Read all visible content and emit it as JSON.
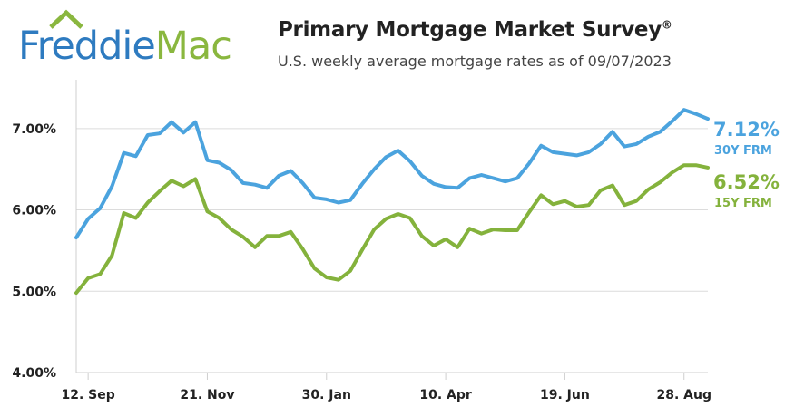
{
  "logo": {
    "part1": "Freddie",
    "part2": "Mac"
  },
  "header": {
    "title": "Primary Mortgage Market Survey",
    "title_mark": "®",
    "subtitle": "U.S. weekly average mortgage rates as of 09/07/2023"
  },
  "colors": {
    "series_30y": "#4ba3de",
    "series_15y": "#84b23c",
    "logo_blue": "#2e7bc0",
    "logo_green": "#8ab73f"
  },
  "chart_data": {
    "type": "line",
    "ylim": [
      4.0,
      7.6
    ],
    "yticks": [
      4.0,
      5.0,
      6.0,
      7.0
    ],
    "ytick_labels": [
      "4.00%",
      "5.00%",
      "6.00%",
      "7.00%"
    ],
    "xtick_labels": [
      "12. Sep",
      "21. Nov",
      "30. Jan",
      "10. Apr",
      "19. Jun",
      "28. Aug"
    ],
    "xtick_index": [
      1,
      11,
      21,
      31,
      41,
      51
    ],
    "grid": "horizontal",
    "series": [
      {
        "name": "30Y FRM",
        "end_value_label": "7.12%",
        "values": [
          5.66,
          5.89,
          6.02,
          6.29,
          6.7,
          6.66,
          6.92,
          6.94,
          7.08,
          6.95,
          7.08,
          6.61,
          6.58,
          6.49,
          6.33,
          6.31,
          6.27,
          6.42,
          6.48,
          6.33,
          6.15,
          6.13,
          6.09,
          6.12,
          6.32,
          6.5,
          6.65,
          6.73,
          6.6,
          6.42,
          6.32,
          6.28,
          6.27,
          6.39,
          6.43,
          6.39,
          6.35,
          6.39,
          6.57,
          6.79,
          6.71,
          6.69,
          6.67,
          6.71,
          6.81,
          6.96,
          6.78,
          6.81,
          6.9,
          6.96,
          7.09,
          7.23,
          7.18,
          7.12
        ]
      },
      {
        "name": "15Y FRM",
        "end_value_label": "6.52%",
        "values": [
          4.98,
          5.16,
          5.21,
          5.44,
          5.96,
          5.9,
          6.09,
          6.23,
          6.36,
          6.29,
          6.38,
          5.98,
          5.9,
          5.76,
          5.67,
          5.54,
          5.68,
          5.68,
          5.73,
          5.52,
          5.28,
          5.17,
          5.14,
          5.25,
          5.51,
          5.76,
          5.89,
          5.95,
          5.9,
          5.68,
          5.56,
          5.64,
          5.54,
          5.77,
          5.71,
          5.76,
          5.75,
          5.75,
          5.97,
          6.18,
          6.07,
          6.11,
          6.04,
          6.06,
          6.24,
          6.3,
          6.06,
          6.11,
          6.25,
          6.34,
          6.46,
          6.55,
          6.55,
          6.52
        ]
      }
    ]
  }
}
